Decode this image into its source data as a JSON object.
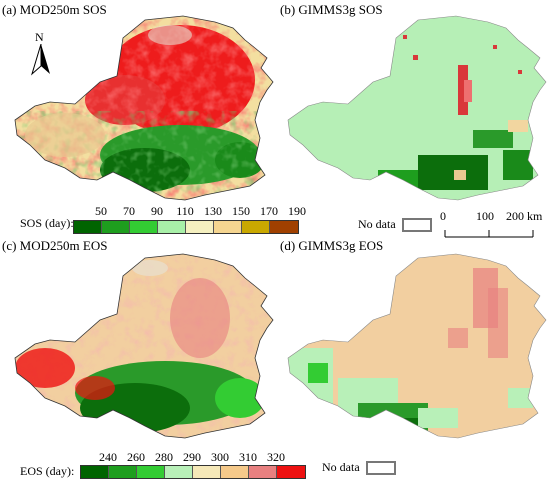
{
  "panels": {
    "a": {
      "title": "(a) MOD250m SOS"
    },
    "b": {
      "title": "(b) GIMMS3g SOS"
    },
    "c": {
      "title": "(c) MOD250m EOS"
    },
    "d": {
      "title": "(d) GIMMS3g EOS"
    }
  },
  "north_arrow": {
    "label": "N"
  },
  "sos_legend": {
    "label": "SOS (day):",
    "ticks": [
      "50",
      "70",
      "90",
      "110",
      "130",
      "150",
      "170",
      "190"
    ],
    "colors": [
      "#006400",
      "#1e9e1e",
      "#33cc33",
      "#a8f0a8",
      "#f5f0c0",
      "#f5d590",
      "#c9a800",
      "#a04000"
    ]
  },
  "eos_legend": {
    "label": "EOS (day):",
    "ticks": [
      "240",
      "260",
      "280",
      "290",
      "300",
      "310",
      "320"
    ],
    "colors": [
      "#006400",
      "#1e9e1e",
      "#33cc33",
      "#b8f0b8",
      "#f5e8b8",
      "#f5c98a",
      "#e88080",
      "#ee1111"
    ]
  },
  "no_data": {
    "label": "No data"
  },
  "scale_bar": {
    "labels": [
      "0",
      "100",
      "200 km"
    ]
  }
}
